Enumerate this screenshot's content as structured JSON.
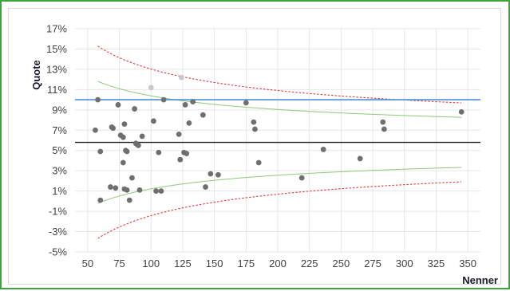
{
  "chart_data": {
    "type": "scatter",
    "title": "",
    "xlabel": "Nenner",
    "ylabel": "Quote",
    "xlim": [
      40,
      360
    ],
    "ylim": [
      -5,
      17
    ],
    "x_ticks": [
      50,
      75,
      100,
      125,
      150,
      175,
      200,
      225,
      250,
      275,
      300,
      325,
      350
    ],
    "y_ticks": [
      -5,
      -3,
      -1,
      1,
      3,
      5,
      7,
      9,
      11,
      13,
      15,
      17
    ],
    "y_tick_labels": [
      "-5%",
      "-3%",
      "-1%",
      "1%",
      "3%",
      "5%",
      "7%",
      "9%",
      "11%",
      "13%",
      "15%",
      "17%"
    ],
    "x_tick_labels": [
      "50",
      "75",
      "100",
      "125",
      "150",
      "175",
      "200",
      "225",
      "250",
      "275",
      "300",
      "325",
      "350"
    ],
    "grid": true,
    "colors": {
      "points": "#6f6f6f",
      "points_light": "#c8c8c8",
      "mean_line": "#1a1a1a",
      "target_line": "#4a90d9",
      "inner_band": "#8cc97a",
      "outer_band": "#e03a3a",
      "grid": "#e6e6e6",
      "frame": "#3aa53a"
    },
    "mean_line": 5.8,
    "target_line": 10.0,
    "bands": [
      {
        "kind": "inner",
        "z": 1.96,
        "dash": "solid"
      },
      {
        "kind": "outer",
        "z": 3.09,
        "dash": "dotted"
      }
    ],
    "band_x_range": [
      58,
      345
    ],
    "points": [
      [
        56,
        7.0
      ],
      [
        58,
        10.0
      ],
      [
        60,
        4.9
      ],
      [
        60,
        0.1
      ],
      [
        68,
        1.4
      ],
      [
        69,
        7.3
      ],
      [
        70,
        7.2
      ],
      [
        72,
        1.3
      ],
      [
        74,
        9.5
      ],
      [
        76,
        6.5
      ],
      [
        78,
        6.3
      ],
      [
        78,
        3.8
      ],
      [
        79,
        7.6
      ],
      [
        79,
        1.2
      ],
      [
        80,
        5.0
      ],
      [
        81,
        4.9
      ],
      [
        81,
        1.1
      ],
      [
        83,
        0.1
      ],
      [
        85,
        2.3
      ],
      [
        87,
        9.1
      ],
      [
        88,
        5.7
      ],
      [
        89,
        5.6
      ],
      [
        90,
        5.5
      ],
      [
        91,
        1.1
      ],
      [
        93,
        6.4
      ],
      [
        102,
        7.9
      ],
      [
        104,
        1.0
      ],
      [
        106,
        4.8
      ],
      [
        108,
        1.0
      ],
      [
        110,
        10.0
      ],
      [
        122,
        6.6
      ],
      [
        123,
        4.1
      ],
      [
        126,
        4.8
      ],
      [
        127,
        9.5
      ],
      [
        128,
        4.7
      ],
      [
        130,
        7.7
      ],
      [
        133,
        9.8
      ],
      [
        141,
        8.5
      ],
      [
        143,
        1.4
      ],
      [
        147,
        2.7
      ],
      [
        153,
        2.6
      ],
      [
        175,
        9.7
      ],
      [
        181,
        7.8
      ],
      [
        182,
        7.1
      ],
      [
        185,
        3.8
      ],
      [
        219,
        2.3
      ],
      [
        236,
        5.1
      ],
      [
        265,
        4.2
      ],
      [
        283,
        7.8
      ],
      [
        284,
        7.1
      ],
      [
        345,
        8.8
      ]
    ],
    "points_light": [
      [
        100,
        11.2
      ],
      [
        124,
        12.2
      ]
    ]
  }
}
